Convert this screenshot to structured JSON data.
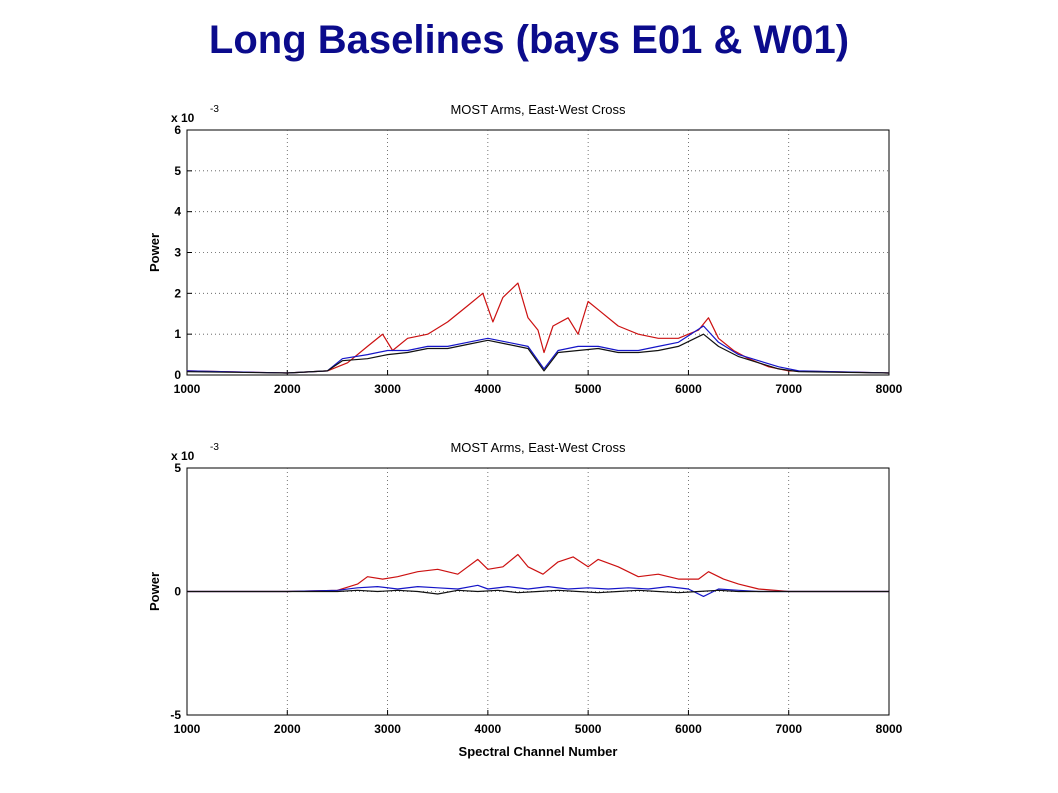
{
  "slide": {
    "title": "Long Baselines (bays E01 & W01)"
  },
  "colors": {
    "title": "#0b0b8c",
    "red": "#cc1111",
    "blue": "#1515c8",
    "black": "#111111"
  },
  "chart_data": [
    {
      "type": "line",
      "title": "MOST Arms, East-West Cross",
      "xlabel": "",
      "ylabel": "Power",
      "multiplier_label": "x 10",
      "multiplier_exponent": "-3",
      "xlim": [
        1000,
        8000
      ],
      "ylim": [
        0,
        6
      ],
      "xticks": [
        1000,
        2000,
        3000,
        4000,
        5000,
        6000,
        7000,
        8000
      ],
      "yticks": [
        0,
        1,
        2,
        3,
        4,
        5,
        6
      ],
      "grid": true,
      "series": [
        {
          "color": "#cc1111",
          "points": [
            [
              1000,
              0.1
            ],
            [
              2000,
              0.05
            ],
            [
              2400,
              0.1
            ],
            [
              2600,
              0.3
            ],
            [
              2800,
              0.7
            ],
            [
              2950,
              1.0
            ],
            [
              3050,
              0.6
            ],
            [
              3200,
              0.9
            ],
            [
              3400,
              1.0
            ],
            [
              3600,
              1.3
            ],
            [
              3800,
              1.7
            ],
            [
              3950,
              2.0
            ],
            [
              4050,
              1.3
            ],
            [
              4150,
              1.9
            ],
            [
              4300,
              2.25
            ],
            [
              4400,
              1.4
            ],
            [
              4500,
              1.1
            ],
            [
              4560,
              0.55
            ],
            [
              4650,
              1.2
            ],
            [
              4800,
              1.4
            ],
            [
              4900,
              1.0
            ],
            [
              5000,
              1.8
            ],
            [
              5100,
              1.6
            ],
            [
              5300,
              1.2
            ],
            [
              5500,
              1.0
            ],
            [
              5700,
              0.9
            ],
            [
              5900,
              0.9
            ],
            [
              6100,
              1.1
            ],
            [
              6200,
              1.4
            ],
            [
              6300,
              0.9
            ],
            [
              6450,
              0.6
            ],
            [
              6600,
              0.4
            ],
            [
              6800,
              0.2
            ],
            [
              7000,
              0.1
            ],
            [
              8000,
              0.05
            ]
          ]
        },
        {
          "color": "#1515c8",
          "points": [
            [
              1000,
              0.1
            ],
            [
              2000,
              0.05
            ],
            [
              2400,
              0.1
            ],
            [
              2550,
              0.4
            ],
            [
              2800,
              0.5
            ],
            [
              3000,
              0.6
            ],
            [
              3200,
              0.6
            ],
            [
              3400,
              0.7
            ],
            [
              3600,
              0.7
            ],
            [
              3800,
              0.8
            ],
            [
              4000,
              0.9
            ],
            [
              4200,
              0.8
            ],
            [
              4400,
              0.7
            ],
            [
              4560,
              0.15
            ],
            [
              4700,
              0.6
            ],
            [
              4900,
              0.7
            ],
            [
              5100,
              0.7
            ],
            [
              5300,
              0.6
            ],
            [
              5500,
              0.6
            ],
            [
              5700,
              0.7
            ],
            [
              5900,
              0.8
            ],
            [
              6150,
              1.2
            ],
            [
              6300,
              0.8
            ],
            [
              6500,
              0.5
            ],
            [
              6700,
              0.35
            ],
            [
              6900,
              0.2
            ],
            [
              7100,
              0.1
            ],
            [
              8000,
              0.05
            ]
          ]
        },
        {
          "color": "#111111",
          "points": [
            [
              1000,
              0.08
            ],
            [
              2000,
              0.05
            ],
            [
              2400,
              0.1
            ],
            [
              2550,
              0.35
            ],
            [
              2800,
              0.4
            ],
            [
              3000,
              0.5
            ],
            [
              3200,
              0.55
            ],
            [
              3400,
              0.65
            ],
            [
              3600,
              0.65
            ],
            [
              3800,
              0.75
            ],
            [
              4000,
              0.85
            ],
            [
              4200,
              0.75
            ],
            [
              4400,
              0.65
            ],
            [
              4560,
              0.1
            ],
            [
              4700,
              0.55
            ],
            [
              4900,
              0.6
            ],
            [
              5100,
              0.65
            ],
            [
              5300,
              0.55
            ],
            [
              5500,
              0.55
            ],
            [
              5700,
              0.6
            ],
            [
              5900,
              0.7
            ],
            [
              6150,
              1.0
            ],
            [
              6300,
              0.7
            ],
            [
              6500,
              0.45
            ],
            [
              6700,
              0.3
            ],
            [
              6900,
              0.15
            ],
            [
              7100,
              0.08
            ],
            [
              8000,
              0.05
            ]
          ]
        }
      ]
    },
    {
      "type": "line",
      "title": "MOST Arms, East-West Cross",
      "xlabel": "Spectral Channel Number",
      "ylabel": "Power",
      "multiplier_label": "x 10",
      "multiplier_exponent": "-3",
      "xlim": [
        1000,
        8000
      ],
      "ylim": [
        -5,
        5
      ],
      "xticks": [
        1000,
        2000,
        3000,
        4000,
        5000,
        6000,
        7000,
        8000
      ],
      "yticks": [
        -5,
        0,
        5
      ],
      "grid": true,
      "series": [
        {
          "color": "#cc1111",
          "points": [
            [
              1000,
              0.0
            ],
            [
              2000,
              0.0
            ],
            [
              2500,
              0.05
            ],
            [
              2700,
              0.3
            ],
            [
              2800,
              0.6
            ],
            [
              2950,
              0.5
            ],
            [
              3100,
              0.6
            ],
            [
              3300,
              0.8
            ],
            [
              3500,
              0.9
            ],
            [
              3700,
              0.7
            ],
            [
              3900,
              1.3
            ],
            [
              4000,
              0.9
            ],
            [
              4150,
              1.0
            ],
            [
              4300,
              1.5
            ],
            [
              4400,
              1.0
            ],
            [
              4550,
              0.7
            ],
            [
              4700,
              1.2
            ],
            [
              4850,
              1.4
            ],
            [
              5000,
              1.0
            ],
            [
              5100,
              1.3
            ],
            [
              5300,
              1.0
            ],
            [
              5500,
              0.6
            ],
            [
              5700,
              0.7
            ],
            [
              5900,
              0.5
            ],
            [
              6100,
              0.5
            ],
            [
              6200,
              0.8
            ],
            [
              6350,
              0.5
            ],
            [
              6500,
              0.3
            ],
            [
              6700,
              0.1
            ],
            [
              7000,
              0.0
            ],
            [
              8000,
              0.0
            ]
          ]
        },
        {
          "color": "#1515c8",
          "points": [
            [
              1000,
              0.0
            ],
            [
              2000,
              0.0
            ],
            [
              2500,
              0.05
            ],
            [
              2700,
              0.15
            ],
            [
              2900,
              0.2
            ],
            [
              3100,
              0.1
            ],
            [
              3300,
              0.2
            ],
            [
              3500,
              0.15
            ],
            [
              3700,
              0.1
            ],
            [
              3900,
              0.25
            ],
            [
              4000,
              0.1
            ],
            [
              4200,
              0.2
            ],
            [
              4400,
              0.1
            ],
            [
              4600,
              0.2
            ],
            [
              4800,
              0.1
            ],
            [
              5000,
              0.15
            ],
            [
              5200,
              0.1
            ],
            [
              5400,
              0.15
            ],
            [
              5600,
              0.1
            ],
            [
              5800,
              0.2
            ],
            [
              6000,
              0.1
            ],
            [
              6150,
              -0.2
            ],
            [
              6300,
              0.1
            ],
            [
              6500,
              0.05
            ],
            [
              6700,
              0.0
            ],
            [
              8000,
              0.0
            ]
          ]
        },
        {
          "color": "#111111",
          "points": [
            [
              1000,
              0.0
            ],
            [
              2000,
              0.0
            ],
            [
              2500,
              0.0
            ],
            [
              2700,
              0.05
            ],
            [
              2900,
              0.0
            ],
            [
              3100,
              0.05
            ],
            [
              3300,
              0.0
            ],
            [
              3500,
              -0.1
            ],
            [
              3700,
              0.05
            ],
            [
              3900,
              0.0
            ],
            [
              4100,
              0.05
            ],
            [
              4300,
              -0.05
            ],
            [
              4500,
              0.0
            ],
            [
              4700,
              0.05
            ],
            [
              4900,
              0.0
            ],
            [
              5100,
              -0.05
            ],
            [
              5300,
              0.0
            ],
            [
              5500,
              0.05
            ],
            [
              5700,
              0.0
            ],
            [
              5900,
              -0.05
            ],
            [
              6100,
              0.0
            ],
            [
              6300,
              0.05
            ],
            [
              6500,
              0.0
            ],
            [
              8000,
              0.0
            ]
          ]
        }
      ]
    }
  ]
}
